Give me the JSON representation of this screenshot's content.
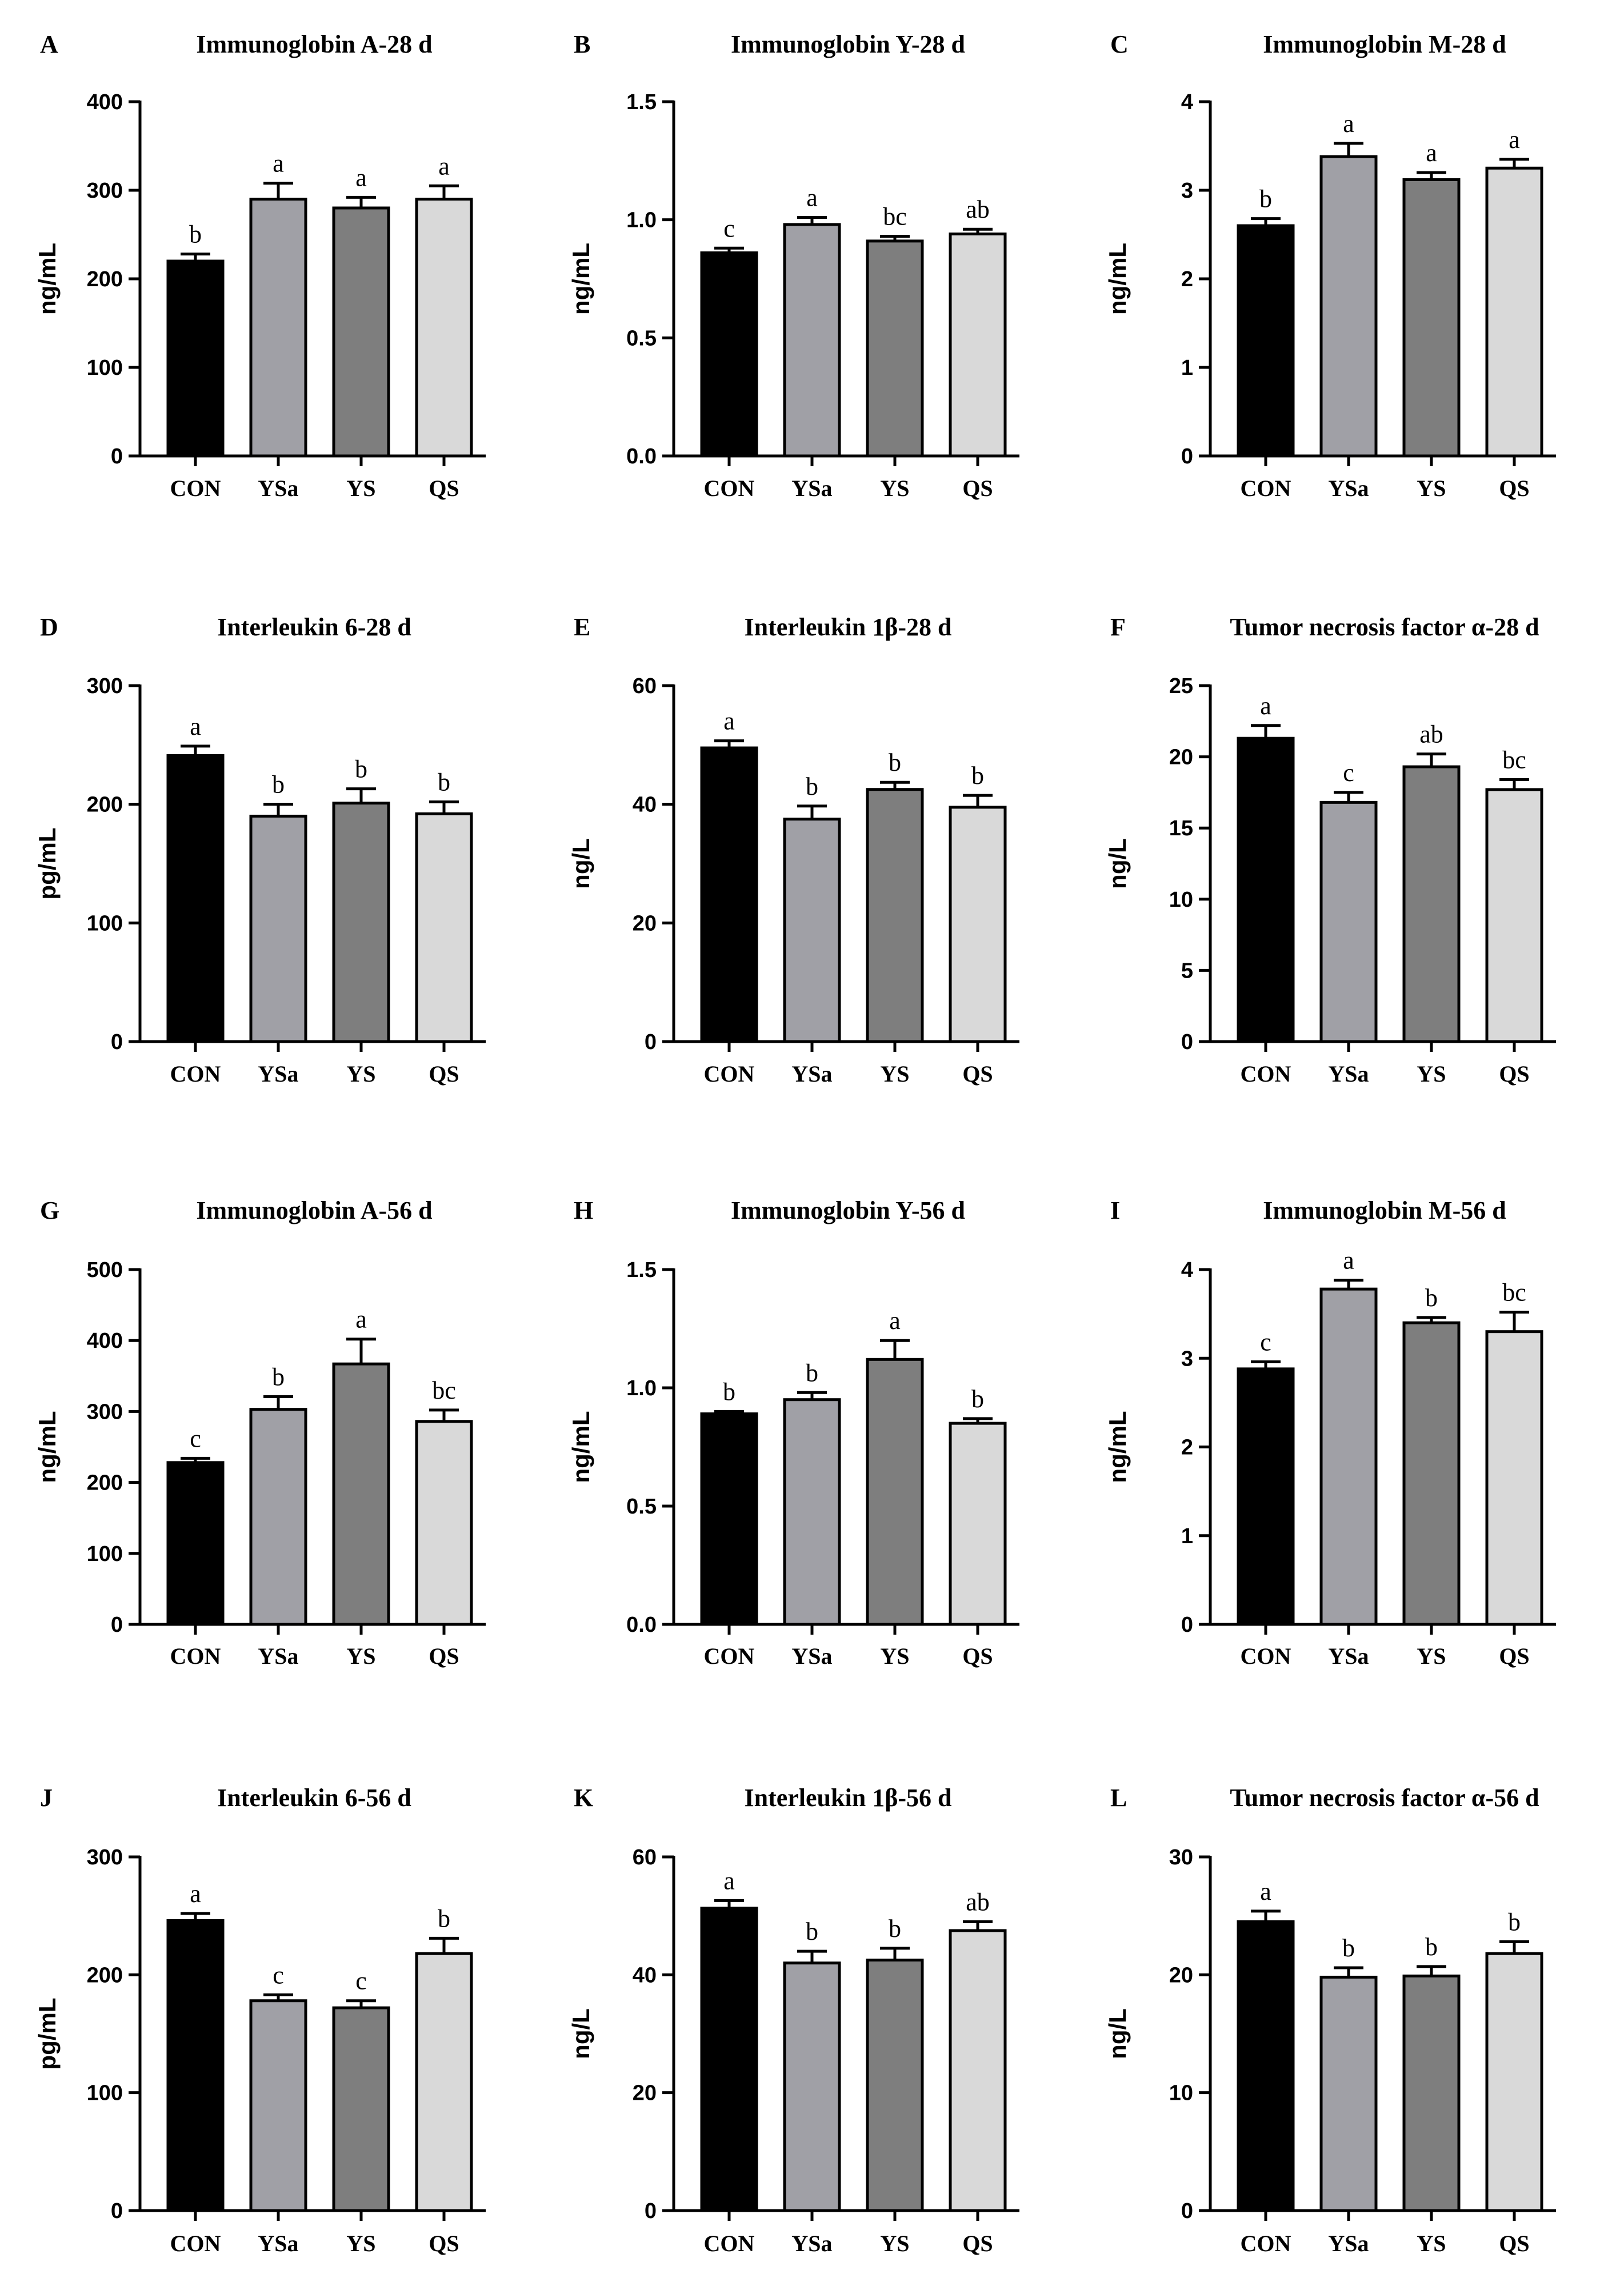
{
  "colors": {
    "CON": "#000000",
    "YSa": "#a0a0a6",
    "YS": "#7e7e7e",
    "QS": "#d9d9d9"
  },
  "chart_data": [
    {
      "panel": "A",
      "type": "bar",
      "title": "Immunoglobin A-28 d",
      "ylabel": "ng/mL",
      "categories": [
        "CON",
        "YSa",
        "YS",
        "QS"
      ],
      "values": [
        220,
        290,
        280,
        290
      ],
      "errors": [
        8,
        18,
        12,
        15
      ],
      "sig": [
        "b",
        "a",
        "a",
        "a"
      ],
      "ylim": [
        0,
        400
      ],
      "yticks": [
        0,
        100,
        200,
        300,
        400
      ],
      "ytick_labels": [
        "0",
        "100",
        "200",
        "300",
        "400"
      ]
    },
    {
      "panel": "B",
      "type": "bar",
      "title": "Immunoglobin Y-28 d",
      "ylabel": "ng/mL",
      "categories": [
        "CON",
        "YSa",
        "YS",
        "QS"
      ],
      "values": [
        0.86,
        0.98,
        0.91,
        0.94
      ],
      "errors": [
        0.02,
        0.03,
        0.02,
        0.02
      ],
      "sig": [
        "c",
        "a",
        "bc",
        "ab"
      ],
      "ylim": [
        0,
        1.5
      ],
      "yticks": [
        0,
        0.5,
        1.0,
        1.5
      ],
      "ytick_labels": [
        "0.0",
        "0.5",
        "1.0",
        "1.5"
      ]
    },
    {
      "panel": "C",
      "type": "bar",
      "title": "Immunoglobin M-28 d",
      "ylabel": "ng/mL",
      "categories": [
        "CON",
        "YSa",
        "YS",
        "QS"
      ],
      "values": [
        2.6,
        3.38,
        3.12,
        3.25
      ],
      "errors": [
        0.08,
        0.15,
        0.08,
        0.1
      ],
      "sig": [
        "b",
        "a",
        "a",
        "a"
      ],
      "ylim": [
        0,
        4
      ],
      "yticks": [
        0,
        1,
        2,
        3,
        4
      ],
      "ytick_labels": [
        "0",
        "1",
        "2",
        "3",
        "4"
      ]
    },
    {
      "panel": "D",
      "type": "bar",
      "title": "Interleukin 6-28 d",
      "ylabel": "pg/mL",
      "categories": [
        "CON",
        "YSa",
        "YS",
        "QS"
      ],
      "values": [
        241,
        190,
        201,
        192
      ],
      "errors": [
        8,
        10,
        12,
        10
      ],
      "sig": [
        "a",
        "b",
        "b",
        "b"
      ],
      "ylim": [
        0,
        300
      ],
      "yticks": [
        0,
        100,
        200,
        300
      ],
      "ytick_labels": [
        "0",
        "100",
        "200",
        "300"
      ]
    },
    {
      "panel": "E",
      "type": "bar",
      "title": "Interleukin 1β-28 d",
      "ylabel": "ng/L",
      "categories": [
        "CON",
        "YSa",
        "YS",
        "QS"
      ],
      "values": [
        49.5,
        37.5,
        42.5,
        39.5
      ],
      "errors": [
        1.2,
        2.2,
        1.2,
        2.0
      ],
      "sig": [
        "a",
        "b",
        "b",
        "b"
      ],
      "ylim": [
        0,
        60
      ],
      "yticks": [
        0,
        20,
        40,
        60
      ],
      "ytick_labels": [
        "0",
        "20",
        "40",
        "60"
      ]
    },
    {
      "panel": "F",
      "type": "bar",
      "title": "Tumor necrosis factor α-28 d",
      "ylabel": "ng/L",
      "categories": [
        "CON",
        "YSa",
        "YS",
        "QS"
      ],
      "values": [
        21.3,
        16.8,
        19.3,
        17.7
      ],
      "errors": [
        0.9,
        0.7,
        0.9,
        0.7
      ],
      "sig": [
        "a",
        "c",
        "ab",
        "bc"
      ],
      "ylim": [
        0,
        25
      ],
      "yticks": [
        0,
        5,
        10,
        15,
        20,
        25
      ],
      "ytick_labels": [
        "0",
        "5",
        "10",
        "15",
        "20",
        "25"
      ]
    },
    {
      "panel": "G",
      "type": "bar",
      "title": "Immunoglobin A-56 d",
      "ylabel": "ng/mL",
      "categories": [
        "CON",
        "YSa",
        "YS",
        "QS"
      ],
      "values": [
        228,
        303,
        367,
        286
      ],
      "errors": [
        6,
        18,
        35,
        16
      ],
      "sig": [
        "c",
        "b",
        "a",
        "bc"
      ],
      "ylim": [
        0,
        500
      ],
      "yticks": [
        0,
        100,
        200,
        300,
        400,
        500
      ],
      "ytick_labels": [
        "0",
        "100",
        "200",
        "300",
        "400",
        "500"
      ]
    },
    {
      "panel": "H",
      "type": "bar",
      "title": "Immunoglobin Y-56 d",
      "ylabel": "ng/mL",
      "categories": [
        "CON",
        "YSa",
        "YS",
        "QS"
      ],
      "values": [
        0.89,
        0.95,
        1.12,
        0.85
      ],
      "errors": [
        0.01,
        0.03,
        0.08,
        0.02
      ],
      "sig": [
        "b",
        "b",
        "a",
        "b"
      ],
      "ylim": [
        0,
        1.5
      ],
      "yticks": [
        0,
        0.5,
        1.0,
        1.5
      ],
      "ytick_labels": [
        "0.0",
        "0.5",
        "1.0",
        "1.5"
      ]
    },
    {
      "panel": "I",
      "type": "bar",
      "title": "Immunoglobin M-56 d",
      "ylabel": "ng/mL",
      "categories": [
        "CON",
        "YSa",
        "YS",
        "QS"
      ],
      "values": [
        2.88,
        3.78,
        3.4,
        3.3
      ],
      "errors": [
        0.08,
        0.1,
        0.06,
        0.22
      ],
      "sig": [
        "c",
        "a",
        "b",
        "bc"
      ],
      "ylim": [
        0,
        4
      ],
      "yticks": [
        0,
        1,
        2,
        3,
        4
      ],
      "ytick_labels": [
        "0",
        "1",
        "2",
        "3",
        "4"
      ]
    },
    {
      "panel": "J",
      "type": "bar",
      "title": "Interleukin 6-56 d",
      "ylabel": "pg/mL",
      "categories": [
        "CON",
        "YSa",
        "YS",
        "QS"
      ],
      "values": [
        246,
        178,
        172,
        218
      ],
      "errors": [
        6,
        5,
        6,
        13
      ],
      "sig": [
        "a",
        "c",
        "c",
        "b"
      ],
      "ylim": [
        0,
        300
      ],
      "yticks": [
        0,
        100,
        200,
        300
      ],
      "ytick_labels": [
        "0",
        "100",
        "200",
        "300"
      ]
    },
    {
      "panel": "K",
      "type": "bar",
      "title": "Interleukin 1β-56 d",
      "ylabel": "ng/L",
      "categories": [
        "CON",
        "YSa",
        "YS",
        "QS"
      ],
      "values": [
        51.3,
        42.0,
        42.5,
        47.5
      ],
      "errors": [
        1.3,
        2.0,
        2.0,
        1.5
      ],
      "sig": [
        "a",
        "b",
        "b",
        "ab"
      ],
      "ylim": [
        0,
        60
      ],
      "yticks": [
        0,
        20,
        40,
        60
      ],
      "ytick_labels": [
        "0",
        "20",
        "40",
        "60"
      ]
    },
    {
      "panel": "L",
      "type": "bar",
      "title": "Tumor necrosis factor α-56 d",
      "ylabel": "ng/L",
      "categories": [
        "CON",
        "YSa",
        "YS",
        "QS"
      ],
      "values": [
        24.5,
        19.8,
        19.9,
        21.8
      ],
      "errors": [
        0.9,
        0.8,
        0.8,
        1.0
      ],
      "sig": [
        "a",
        "b",
        "b",
        "b"
      ],
      "ylim": [
        0,
        30
      ],
      "yticks": [
        0,
        10,
        20,
        30
      ],
      "ytick_labels": [
        "0",
        "10",
        "20",
        "30"
      ]
    }
  ]
}
